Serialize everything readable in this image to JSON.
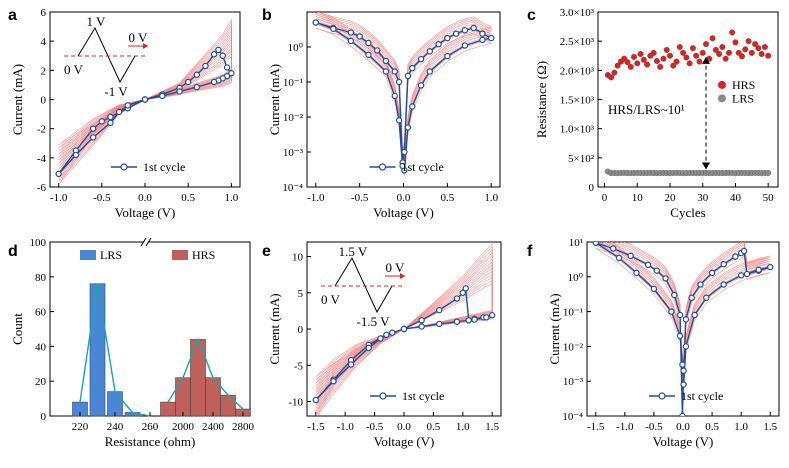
{
  "colors": {
    "blue": "#1f4e9a",
    "pink": "#f08080",
    "red": "#e02020",
    "grey": "#8a8a8a",
    "lrsbar": "#4a86d6",
    "hrsbar": "#c0605a",
    "teal": "#17a9a9",
    "axis": "#000000"
  },
  "chart_data": [
    {
      "id": "a",
      "type": "line",
      "panel_label": "a",
      "xlabel": "Voltage (V)",
      "ylabel": "Current (mA)",
      "xlim": [
        -1.1,
        1.1
      ],
      "ylim": [
        -6,
        6
      ],
      "xticks": [
        -1.0,
        -0.5,
        0.0,
        0.5,
        1.0
      ],
      "xtick_labels": [
        "-1.0",
        "-0.5",
        "0.0",
        "0.5",
        "1.0"
      ],
      "yticks": [
        -6,
        -4,
        -2,
        0,
        2,
        4,
        6
      ],
      "ytick_labels": [
        "-6",
        "-4",
        "-2",
        "0",
        "2",
        "4",
        "6"
      ],
      "legend": "1st cycle",
      "inset": {
        "top": "1 V",
        "mid": "0 V",
        "bottom": "-1 V",
        "end": "0 V"
      },
      "series": [
        {
          "name": "1st cycle",
          "x": [
            0,
            0.2,
            0.4,
            0.5,
            0.6,
            0.7,
            0.8,
            0.85,
            0.9,
            0.95,
            1.0,
            0.95,
            0.9,
            0.85,
            0.8,
            0.6,
            0.4,
            0.2,
            0,
            -0.2,
            -0.4,
            -0.5,
            -0.6,
            -0.8,
            -1.0,
            -0.8,
            -0.6,
            -0.4,
            -0.3,
            -0.2,
            0
          ],
          "y": [
            0,
            0.35,
            0.8,
            1.2,
            1.7,
            2.3,
            3.1,
            3.4,
            3.0,
            2.2,
            1.8,
            1.6,
            1.45,
            1.3,
            1.2,
            0.85,
            0.55,
            0.25,
            0,
            -0.6,
            -1.2,
            -1.5,
            -2.0,
            -3.5,
            -5.1,
            -3.8,
            -2.6,
            -1.6,
            -0.85,
            -0.4,
            0
          ]
        },
        {
          "name": "other cycles",
          "x": [
            0,
            0.4,
            0.7,
            0.9,
            1.0,
            1.0,
            0.9,
            0.6,
            0.3,
            0,
            -0.3,
            -0.6,
            -1.0,
            -0.6,
            -0.3,
            0
          ],
          "y": [
            0,
            1.0,
            2.8,
            4.0,
            4.9,
            1.9,
            1.5,
            1.0,
            0.4,
            0,
            -0.6,
            -2.2,
            -5.2,
            -2.8,
            -0.9,
            0
          ]
        }
      ]
    },
    {
      "id": "b",
      "type": "line",
      "panel_label": "b",
      "yscale": "log",
      "xlabel": "Voltage (V)",
      "ylabel": "Current (mA)",
      "xlim": [
        -1.1,
        1.1
      ],
      "ylim": [
        0.0001,
        10
      ],
      "xticks": [
        -1.0,
        -0.5,
        0.0,
        0.5,
        1.0
      ],
      "xtick_labels": [
        "-1.0",
        "-0.5",
        "0.0",
        "0.5",
        "1.0"
      ],
      "yticks": [
        0.0001,
        0.001,
        0.01,
        0.1,
        1
      ],
      "ytick_labels": [
        "10⁻⁴",
        "10⁻³",
        "10⁻²",
        "10⁻¹",
        "10⁰"
      ],
      "legend": "1st cycle",
      "series": [
        {
          "name": "1st cycle",
          "x": [
            -1.0,
            -0.8,
            -0.6,
            -0.5,
            -0.4,
            -0.3,
            -0.2,
            -0.1,
            -0.05,
            -0.01,
            0.01,
            0.05,
            0.1,
            0.2,
            0.3,
            0.4,
            0.5,
            0.6,
            0.7,
            0.8,
            0.9,
            1.0,
            0.9,
            0.7,
            0.5,
            0.3,
            0.2,
            0.1,
            0.05,
            0.01,
            -0.01,
            -0.05,
            -0.1,
            -0.2,
            -0.4,
            -0.6,
            -0.8,
            -1.0
          ],
          "y": [
            5.0,
            3.5,
            2.6,
            2.0,
            1.3,
            0.8,
            0.4,
            0.2,
            0.1,
            0.0005,
            0.001,
            0.15,
            0.25,
            0.45,
            0.75,
            1.2,
            1.8,
            2.4,
            3.0,
            3.5,
            2.4,
            1.8,
            1.6,
            1.1,
            0.55,
            0.2,
            0.08,
            0.02,
            0.005,
            0.0003,
            0.0004,
            0.008,
            0.04,
            0.2,
            0.6,
            1.5,
            3.3,
            5.0
          ]
        }
      ]
    },
    {
      "id": "c",
      "type": "scatter",
      "panel_label": "c",
      "xlabel": "Cycles",
      "ylabel": "Resistance (Ω)",
      "xlim": [
        -2,
        53
      ],
      "ylim": [
        0,
        3000
      ],
      "xticks": [
        0,
        10,
        20,
        30,
        40,
        50
      ],
      "xtick_labels": [
        "0",
        "10",
        "20",
        "30",
        "40",
        "50"
      ],
      "yticks": [
        0,
        500,
        1000,
        1500,
        2000,
        2500,
        3000
      ],
      "ytick_labels": [
        "0",
        "5×10²",
        "1.0×10³",
        "1.5×10³",
        "2.0×10³",
        "2.5×10³",
        "3.0×10³"
      ],
      "annotation": "HRS/LRS~10¹",
      "series": [
        {
          "name": "HRS",
          "x": [
            1,
            2,
            3,
            4,
            5,
            6,
            7,
            8,
            9,
            10,
            11,
            12,
            13,
            14,
            15,
            16,
            17,
            18,
            19,
            20,
            21,
            22,
            23,
            24,
            25,
            26,
            27,
            28,
            29,
            30,
            31,
            32,
            33,
            34,
            35,
            36,
            37,
            38,
            39,
            40,
            41,
            42,
            43,
            44,
            45,
            46,
            47,
            48,
            49,
            50
          ],
          "y": [
            1920,
            1880,
            1960,
            2080,
            2150,
            2200,
            2140,
            2060,
            2230,
            2120,
            2280,
            2180,
            2100,
            2250,
            2300,
            2160,
            2060,
            2200,
            2350,
            2250,
            2080,
            2150,
            2400,
            2300,
            2220,
            2120,
            2380,
            2250,
            2150,
            2300,
            2450,
            2200,
            2550,
            2350,
            2280,
            2400,
            2200,
            2300,
            2650,
            2480,
            2300,
            2240,
            2360,
            2500,
            2300,
            2450,
            2380,
            2280,
            2400,
            2250
          ]
        },
        {
          "name": "LRS",
          "x": [
            1,
            2,
            3,
            4,
            5,
            6,
            7,
            8,
            9,
            10,
            11,
            12,
            13,
            14,
            15,
            16,
            17,
            18,
            19,
            20,
            21,
            22,
            23,
            24,
            25,
            26,
            27,
            28,
            29,
            30,
            31,
            32,
            33,
            34,
            35,
            36,
            37,
            38,
            39,
            40,
            41,
            42,
            43,
            44,
            45,
            46,
            47,
            48,
            49,
            50
          ],
          "y": [
            265,
            240,
            240,
            238,
            240,
            242,
            240,
            238,
            240,
            241,
            240,
            239,
            240,
            242,
            240,
            238,
            240,
            241,
            240,
            239,
            240,
            242,
            240,
            238,
            240,
            241,
            240,
            239,
            240,
            242,
            240,
            238,
            240,
            241,
            240,
            239,
            240,
            242,
            240,
            238,
            240,
            241,
            240,
            239,
            240,
            242,
            240,
            238,
            240,
            241
          ]
        }
      ]
    },
    {
      "id": "d",
      "type": "bar",
      "panel_label": "d",
      "xlabel": "Resistance (ohm)",
      "ylabel": "Count",
      "ylim": [
        0,
        100
      ],
      "yticks": [
        0,
        20,
        40,
        60,
        80,
        100
      ],
      "ytick_labels": [
        "0",
        "20",
        "40",
        "60",
        "80",
        "100"
      ],
      "xtick_labels": [
        "220",
        "240",
        "260",
        "2000",
        "2400",
        "2800"
      ],
      "series": [
        {
          "name": "LRS",
          "categories": [
            "220",
            "230",
            "240",
            "250",
            "260"
          ],
          "values": [
            8,
            76,
            14,
            2,
            0
          ]
        },
        {
          "name": "HRS",
          "categories": [
            "1800",
            "2000",
            "2200",
            "2400",
            "2600",
            "2800"
          ],
          "values": [
            8,
            22,
            44,
            22,
            12,
            4
          ]
        }
      ]
    },
    {
      "id": "e",
      "type": "line",
      "panel_label": "e",
      "xlabel": "Voltage (V)",
      "ylabel": "Current (mA)",
      "xlim": [
        -1.65,
        1.65
      ],
      "ylim": [
        -12,
        12
      ],
      "xticks": [
        -1.5,
        -1.0,
        -0.5,
        0.0,
        0.5,
        1.0,
        1.5
      ],
      "xtick_labels": [
        "-1.5",
        "-1.0",
        "-0.5",
        "0.0",
        "0.5",
        "1.0",
        "1.5"
      ],
      "yticks": [
        -10,
        -5,
        0,
        5,
        10
      ],
      "ytick_labels": [
        "-10",
        "-5",
        "0",
        "5",
        "10"
      ],
      "legend": "1st cycle",
      "inset": {
        "top": "1.5 V",
        "mid": "0 V",
        "bottom": "-1.5 V",
        "end": "0 V"
      },
      "series": [
        {
          "name": "1st cycle",
          "x": [
            0,
            0.3,
            0.6,
            0.9,
            1.0,
            1.05,
            1.1,
            1.2,
            1.35,
            1.5,
            1.4,
            1.2,
            0.9,
            0.6,
            0.3,
            0,
            -0.3,
            -0.6,
            -0.9,
            -1.2,
            -1.5,
            -1.2,
            -0.9,
            -0.6,
            -0.4,
            -0.2,
            0
          ],
          "y": [
            0,
            1.2,
            2.6,
            4.2,
            5.0,
            5.6,
            1.2,
            1.4,
            1.6,
            1.9,
            1.6,
            1.3,
            1.0,
            0.7,
            0.35,
            0,
            -0.8,
            -2.2,
            -4.3,
            -7.0,
            -9.8,
            -7.2,
            -4.9,
            -2.6,
            -1.3,
            -0.5,
            0
          ]
        },
        {
          "name": "other cycles",
          "x": [
            0,
            0.5,
            1.0,
            1.3,
            1.5,
            1.5,
            1.2,
            0.8,
            0.4,
            0,
            -0.4,
            -0.8,
            -1.2,
            -1.5,
            -1.2,
            -0.8,
            -0.4,
            0
          ],
          "y": [
            0,
            3.2,
            6.5,
            9.0,
            10.5,
            2.3,
            1.8,
            1.2,
            0.5,
            0,
            -1.6,
            -3.5,
            -7.0,
            -11.0,
            -8.0,
            -4.5,
            -1.8,
            0
          ]
        }
      ]
    },
    {
      "id": "f",
      "type": "line",
      "panel_label": "f",
      "yscale": "log",
      "xlabel": "Voltage (V)",
      "ylabel": "Current (mA)",
      "xlim": [
        -1.65,
        1.65
      ],
      "ylim": [
        0.0001,
        10
      ],
      "xticks": [
        -1.5,
        -1.0,
        -0.5,
        0.0,
        0.5,
        1.0,
        1.5
      ],
      "xtick_labels": [
        "-1.5",
        "-1.0",
        "-0.5",
        "0.0",
        "0.5",
        "1.0",
        "1.5"
      ],
      "yticks": [
        0.0001,
        0.001,
        0.01,
        0.1,
        1,
        10
      ],
      "ytick_labels": [
        "10⁻⁴",
        "10⁻³",
        "10⁻²",
        "10⁻¹",
        "10⁰",
        "10¹"
      ],
      "legend": "1st cycle",
      "series": [
        {
          "name": "1st cycle",
          "x": [
            -1.5,
            -1.2,
            -0.9,
            -0.6,
            -0.45,
            -0.3,
            -0.15,
            -0.05,
            -0.01,
            0.01,
            0.05,
            0.15,
            0.3,
            0.5,
            0.7,
            0.9,
            1.0,
            1.05,
            1.1,
            1.3,
            1.5,
            1.3,
            1.0,
            0.7,
            0.4,
            0.2,
            0.05,
            0.01,
            -0.01,
            -0.05,
            -0.2,
            -0.5,
            -0.8,
            -1.1,
            -1.5
          ],
          "y": [
            9.5,
            6.5,
            4.0,
            2.2,
            1.5,
            0.9,
            0.3,
            0.08,
            0.0001,
            0.002,
            0.06,
            0.25,
            0.6,
            1.3,
            2.3,
            3.8,
            4.8,
            5.5,
            1.2,
            1.5,
            1.9,
            1.6,
            1.1,
            0.6,
            0.25,
            0.08,
            0.01,
            0.0008,
            0.003,
            0.02,
            0.1,
            0.45,
            1.3,
            3.5,
            9.5
          ]
        }
      ]
    }
  ]
}
